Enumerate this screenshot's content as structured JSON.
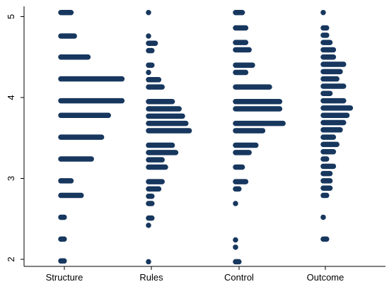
{
  "chart_data": {
    "type": "dot strip plot",
    "title": "",
    "xlabel": "",
    "ylabel": "",
    "ylim": [
      2,
      5
    ],
    "y_ticks": [
      "2",
      "3",
      "4",
      "5"
    ],
    "categories": [
      "Structure",
      "Rules",
      "Control",
      "Outcome"
    ],
    "grid": false,
    "legend": "none",
    "colors": {
      "marks": "#17375e",
      "axes": "#000000",
      "background": "#ffffff"
    },
    "series": [
      {
        "values": [
          {
            "y": 5.05,
            "count": 4
          },
          {
            "y": 4.76,
            "count": 5
          },
          {
            "y": 4.5,
            "count": 9
          },
          {
            "y": 4.23,
            "count": 19
          },
          {
            "y": 3.96,
            "count": 19
          },
          {
            "y": 3.78,
            "count": 15
          },
          {
            "y": 3.51,
            "count": 13
          },
          {
            "y": 3.24,
            "count": 10
          },
          {
            "y": 2.97,
            "count": 4
          },
          {
            "y": 2.79,
            "count": 7
          },
          {
            "y": 2.52,
            "count": 2
          },
          {
            "y": 2.25,
            "count": 2
          },
          {
            "y": 1.98,
            "count": 2
          }
        ]
      },
      {
        "values": [
          {
            "y": 5.05,
            "count": 1
          },
          {
            "y": 4.76,
            "count": 1
          },
          {
            "y": 4.67,
            "count": 3
          },
          {
            "y": 4.58,
            "count": 2
          },
          {
            "y": 4.4,
            "count": 2
          },
          {
            "y": 4.31,
            "count": 1
          },
          {
            "y": 4.22,
            "count": 4
          },
          {
            "y": 4.13,
            "count": 5
          },
          {
            "y": 3.95,
            "count": 8
          },
          {
            "y": 3.86,
            "count": 10
          },
          {
            "y": 3.77,
            "count": 11
          },
          {
            "y": 3.68,
            "count": 12
          },
          {
            "y": 3.59,
            "count": 13
          },
          {
            "y": 3.41,
            "count": 8
          },
          {
            "y": 3.32,
            "count": 9
          },
          {
            "y": 3.23,
            "count": 5
          },
          {
            "y": 3.14,
            "count": 6
          },
          {
            "y": 2.96,
            "count": 5
          },
          {
            "y": 2.87,
            "count": 4
          },
          {
            "y": 2.78,
            "count": 2
          },
          {
            "y": 2.69,
            "count": 2
          },
          {
            "y": 2.51,
            "count": 2
          },
          {
            "y": 2.42,
            "count": 1
          },
          {
            "y": 1.97,
            "count": 1
          }
        ]
      },
      {
        "values": [
          {
            "y": 5.05,
            "count": 3
          },
          {
            "y": 4.86,
            "count": 4
          },
          {
            "y": 4.68,
            "count": 4
          },
          {
            "y": 4.59,
            "count": 5
          },
          {
            "y": 4.4,
            "count": 6
          },
          {
            "y": 4.31,
            "count": 4
          },
          {
            "y": 4.13,
            "count": 11
          },
          {
            "y": 3.95,
            "count": 14
          },
          {
            "y": 3.86,
            "count": 14
          },
          {
            "y": 3.68,
            "count": 15
          },
          {
            "y": 3.59,
            "count": 9
          },
          {
            "y": 3.41,
            "count": 7
          },
          {
            "y": 3.32,
            "count": 5
          },
          {
            "y": 3.14,
            "count": 3
          },
          {
            "y": 2.96,
            "count": 4
          },
          {
            "y": 2.87,
            "count": 2
          },
          {
            "y": 2.69,
            "count": 1
          },
          {
            "y": 2.24,
            "count": 1
          },
          {
            "y": 2.15,
            "count": 1
          },
          {
            "y": 1.97,
            "count": 2
          }
        ]
      },
      {
        "values": [
          {
            "y": 5.05,
            "count": 1
          },
          {
            "y": 4.86,
            "count": 2
          },
          {
            "y": 4.77,
            "count": 2
          },
          {
            "y": 4.68,
            "count": 3
          },
          {
            "y": 4.59,
            "count": 4
          },
          {
            "y": 4.5,
            "count": 4
          },
          {
            "y": 4.41,
            "count": 7
          },
          {
            "y": 4.32,
            "count": 6
          },
          {
            "y": 4.23,
            "count": 5
          },
          {
            "y": 4.14,
            "count": 7
          },
          {
            "y": 4.05,
            "count": 3
          },
          {
            "y": 3.96,
            "count": 7
          },
          {
            "y": 3.87,
            "count": 9
          },
          {
            "y": 3.78,
            "count": 8
          },
          {
            "y": 3.69,
            "count": 7
          },
          {
            "y": 3.6,
            "count": 6
          },
          {
            "y": 3.51,
            "count": 4
          },
          {
            "y": 3.42,
            "count": 5
          },
          {
            "y": 3.33,
            "count": 4
          },
          {
            "y": 3.24,
            "count": 2
          },
          {
            "y": 3.15,
            "count": 4
          },
          {
            "y": 3.06,
            "count": 3
          },
          {
            "y": 2.97,
            "count": 3
          },
          {
            "y": 2.88,
            "count": 3
          },
          {
            "y": 2.79,
            "count": 2
          },
          {
            "y": 2.52,
            "count": 1
          },
          {
            "y": 2.25,
            "count": 2
          }
        ]
      }
    ]
  }
}
